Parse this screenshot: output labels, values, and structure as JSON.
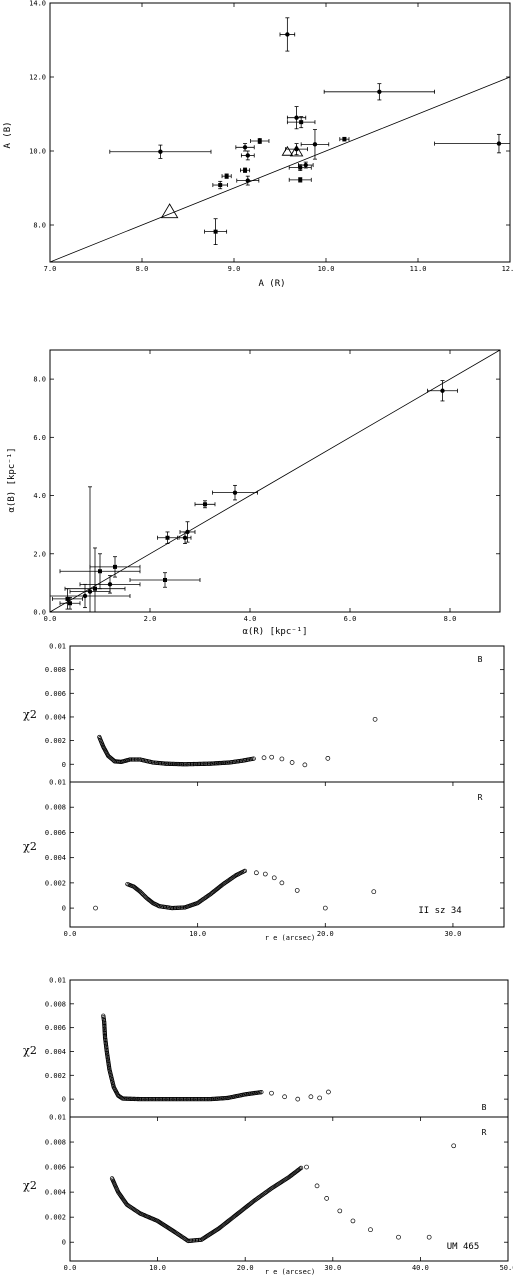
{
  "chart_data": [
    {
      "type": "scatter",
      "panel": "p1",
      "xlabel": "A (R)",
      "ylabel": "A (B)",
      "xlim": [
        7.0,
        12.0
      ],
      "ylim": [
        7.0,
        14.0
      ],
      "xticks": [
        "7.0",
        "8.0",
        "9.0",
        "10.0",
        "11.0",
        "12.0"
      ],
      "yticks": [
        "8.0",
        "10.0",
        "12.0",
        "14.0"
      ],
      "line": [
        [
          7.0,
          7.0
        ],
        [
          12.0,
          12.0
        ]
      ],
      "points": [
        {
          "x": 9.58,
          "y": 13.15,
          "ex": 0.08,
          "ey": 0.45,
          "m": "o"
        },
        {
          "x": 10.58,
          "y": 11.6,
          "ex": 0.6,
          "ey": 0.22,
          "m": "o"
        },
        {
          "x": 11.88,
          "y": 10.2,
          "ex": 0.7,
          "ey": 0.25,
          "m": "o"
        },
        {
          "x": 8.2,
          "y": 9.98,
          "ex": 0.55,
          "ey": 0.18,
          "m": "o"
        },
        {
          "x": 9.68,
          "y": 10.9,
          "ex": 0.1,
          "ey": 0.3,
          "m": "o"
        },
        {
          "x": 9.73,
          "y": 10.78,
          "ex": 0.15,
          "ey": 0.15,
          "m": "s"
        },
        {
          "x": 9.28,
          "y": 10.27,
          "ex": 0.1,
          "ey": 0.07,
          "m": "s"
        },
        {
          "x": 10.2,
          "y": 10.32,
          "ex": 0.05,
          "ey": 0.05,
          "m": "s"
        },
        {
          "x": 9.12,
          "y": 10.1,
          "ex": 0.1,
          "ey": 0.1,
          "m": "o"
        },
        {
          "x": 9.15,
          "y": 9.88,
          "ex": 0.07,
          "ey": 0.12,
          "m": "o"
        },
        {
          "x": 9.68,
          "y": 10.05,
          "ex": 0.12,
          "ey": 0.15,
          "m": "o"
        },
        {
          "x": 9.88,
          "y": 10.18,
          "ex": 0.15,
          "ey": 0.4,
          "m": "o"
        },
        {
          "x": 9.78,
          "y": 9.62,
          "ex": 0.08,
          "ey": 0.08,
          "m": "o"
        },
        {
          "x": 9.72,
          "y": 9.55,
          "ex": 0.12,
          "ey": 0.08,
          "m": "s"
        },
        {
          "x": 9.12,
          "y": 9.48,
          "ex": 0.05,
          "ey": 0.06,
          "m": "s"
        },
        {
          "x": 8.92,
          "y": 9.32,
          "ex": 0.05,
          "ey": 0.06,
          "m": "s"
        },
        {
          "x": 9.15,
          "y": 9.2,
          "ex": 0.12,
          "ey": 0.12,
          "m": "o"
        },
        {
          "x": 8.85,
          "y": 9.08,
          "ex": 0.08,
          "ey": 0.1,
          "m": "s"
        },
        {
          "x": 9.72,
          "y": 9.22,
          "ex": 0.12,
          "ey": 0.06,
          "m": "s"
        },
        {
          "x": 8.8,
          "y": 7.82,
          "ex": 0.12,
          "ey": 0.35,
          "m": "s"
        }
      ],
      "triangles": [
        {
          "x": 8.3,
          "y": 8.35,
          "size": 8
        },
        {
          "x": 9.68,
          "y": 9.98,
          "size": 6
        },
        {
          "x": 9.58,
          "y": 9.98,
          "size": 5
        }
      ]
    },
    {
      "type": "scatter",
      "panel": "p2",
      "xlabel": "α(R) [kpc⁻¹]",
      "ylabel": "α(B) [kpc⁻¹]",
      "xlim": [
        0.0,
        9.0
      ],
      "ylim": [
        0.0,
        9.0
      ],
      "xticks": [
        "0.0",
        "2.0",
        "4.0",
        "6.0",
        "8.0"
      ],
      "yticks": [
        "0.0",
        "2.0",
        "4.0",
        "6.0",
        "8.0"
      ],
      "line": [
        [
          0.0,
          0.0
        ],
        [
          9.0,
          9.0
        ]
      ],
      "points": [
        {
          "x": 7.85,
          "y": 7.6,
          "ex": 0.3,
          "ey": 0.35,
          "m": "o"
        },
        {
          "x": 3.7,
          "y": 4.1,
          "ex": 0.45,
          "ey": 0.25,
          "m": "o"
        },
        {
          "x": 3.1,
          "y": 3.7,
          "ex": 0.2,
          "ey": 0.12,
          "m": "s"
        },
        {
          "x": 2.75,
          "y": 2.75,
          "ex": 0.15,
          "ey": 0.35,
          "m": "o"
        },
        {
          "x": 2.7,
          "y": 2.55,
          "ex": 0.12,
          "ey": 0.2,
          "m": "o"
        },
        {
          "x": 2.35,
          "y": 2.55,
          "ex": 0.2,
          "ey": 0.2,
          "m": "s"
        },
        {
          "x": 2.3,
          "y": 1.1,
          "ex": 0.7,
          "ey": 0.25,
          "m": "s"
        },
        {
          "x": 1.3,
          "y": 1.55,
          "ex": 0.5,
          "ey": 0.35,
          "m": "s"
        },
        {
          "x": 1.0,
          "y": 1.4,
          "ex": 0.8,
          "ey": 0.6,
          "m": "s"
        },
        {
          "x": 0.8,
          "y": 0.7,
          "ex": 0.4,
          "ey": 3.6,
          "m": "o"
        },
        {
          "x": 0.9,
          "y": 0.8,
          "ex": 0.6,
          "ey": 1.4,
          "m": "s"
        },
        {
          "x": 0.7,
          "y": 0.55,
          "ex": 0.9,
          "ey": 0.4,
          "m": "o"
        },
        {
          "x": 0.35,
          "y": 0.45,
          "ex": 0.3,
          "ey": 0.35,
          "m": "s"
        },
        {
          "x": 0.4,
          "y": 0.3,
          "ex": 0.2,
          "ey": 0.2,
          "m": "s"
        },
        {
          "x": 1.2,
          "y": 0.95,
          "ex": 0.6,
          "ey": 0.3,
          "m": "o"
        }
      ]
    },
    {
      "type": "scatter",
      "panel": "p3",
      "band": "B",
      "ylabel": "χ2",
      "xlim": [
        0,
        34
      ],
      "ylim": [
        -0.0015,
        0.01
      ],
      "yticks": [
        "0",
        "0.002",
        "0.004",
        "0.006",
        "0.008",
        "0.01"
      ],
      "curve": [
        [
          2.3,
          0.0023
        ],
        [
          2.6,
          0.0015
        ],
        [
          3.0,
          0.0007
        ],
        [
          3.5,
          0.00025
        ],
        [
          4.0,
          0.0002
        ],
        [
          4.7,
          0.0004
        ],
        [
          5.5,
          0.0004
        ],
        [
          6.5,
          0.00015
        ],
        [
          7.5,
          5e-05
        ],
        [
          9.0,
          0.0
        ],
        [
          11.0,
          5e-05
        ],
        [
          12.5,
          0.00015
        ],
        [
          13.5,
          0.0003
        ],
        [
          14.5,
          0.0005
        ]
      ],
      "points": [
        [
          15.2,
          0.00055
        ],
        [
          15.8,
          0.0006
        ],
        [
          16.6,
          0.00045
        ],
        [
          17.4,
          0.00015
        ],
        [
          18.4,
          -5e-05
        ],
        [
          20.2,
          0.0005
        ],
        [
          23.9,
          0.0038
        ]
      ]
    },
    {
      "type": "scatter",
      "panel": "p4",
      "band": "R",
      "label": "II sz 34",
      "ylabel": "χ2",
      "xlabel": "r e (arcsec)",
      "xlim": [
        0,
        34
      ],
      "ylim": [
        -0.0015,
        0.01
      ],
      "xticks": [
        "0.0",
        "10.0",
        "20.0",
        "30.0"
      ],
      "yticks": [
        "0",
        "0.002",
        "0.004",
        "0.006",
        "0.008",
        "0.01"
      ],
      "curve": [
        [
          4.5,
          0.0019
        ],
        [
          5.0,
          0.0017
        ],
        [
          5.5,
          0.0013
        ],
        [
          6.0,
          0.0008
        ],
        [
          6.5,
          0.0004
        ],
        [
          7.0,
          0.00015
        ],
        [
          8.0,
          0.0
        ],
        [
          9.0,
          5e-05
        ],
        [
          10.0,
          0.0004
        ],
        [
          11.0,
          0.0011
        ],
        [
          12.0,
          0.0019
        ],
        [
          13.0,
          0.0026
        ],
        [
          13.8,
          0.003
        ]
      ],
      "points": [
        [
          14.6,
          0.0028
        ],
        [
          15.3,
          0.0027
        ],
        [
          16.0,
          0.0024
        ],
        [
          16.6,
          0.002
        ],
        [
          17.8,
          0.0014
        ],
        [
          20.0,
          0.0
        ],
        [
          23.8,
          0.0013
        ],
        [
          2.0,
          0.0
        ]
      ]
    },
    {
      "type": "scatter",
      "panel": "p5",
      "band": "B",
      "ylabel": "χ2",
      "xlim": [
        0,
        50
      ],
      "ylim": [
        -0.0015,
        0.01
      ],
      "yticks": [
        "0",
        "0.002",
        "0.004",
        "0.006",
        "0.008",
        "0.01"
      ],
      "curve": [
        [
          3.8,
          0.007
        ],
        [
          3.9,
          0.0065
        ],
        [
          4.0,
          0.0052
        ],
        [
          4.2,
          0.004
        ],
        [
          4.5,
          0.0025
        ],
        [
          5.0,
          0.001
        ],
        [
          5.5,
          0.0003
        ],
        [
          6.0,
          5e-05
        ],
        [
          8.0,
          0.0
        ],
        [
          12.0,
          0.0
        ],
        [
          16.0,
          0.0
        ],
        [
          18.0,
          0.0001
        ],
        [
          20.0,
          0.0004
        ],
        [
          22.0,
          0.0006
        ]
      ],
      "points": [
        [
          23.0,
          0.0005
        ],
        [
          24.5,
          0.0002
        ],
        [
          26.0,
          0.0
        ],
        [
          27.5,
          0.0002
        ],
        [
          28.5,
          0.0001
        ],
        [
          29.5,
          0.0006
        ]
      ]
    },
    {
      "type": "scatter",
      "panel": "p6",
      "band": "R",
      "label": "UM 465",
      "ylabel": "χ2",
      "xlabel": "r e (arcsec)",
      "xlim": [
        0,
        50
      ],
      "ylim": [
        -0.0015,
        0.01
      ],
      "xticks": [
        "0.0",
        "10.0",
        "20.0",
        "30.0",
        "40.0",
        "50.0"
      ],
      "yticks": [
        "0",
        "0.002",
        "0.004",
        "0.006",
        "0.008",
        "0.01"
      ],
      "curve": [
        [
          4.8,
          0.0051
        ],
        [
          5.5,
          0.004
        ],
        [
          6.5,
          0.003
        ],
        [
          8.0,
          0.0023
        ],
        [
          10.0,
          0.0017
        ],
        [
          12.0,
          0.0008
        ],
        [
          13.5,
          0.0001
        ],
        [
          15.0,
          0.0002
        ],
        [
          17.0,
          0.0011
        ],
        [
          19.0,
          0.0022
        ],
        [
          21.0,
          0.0033
        ],
        [
          23.0,
          0.0043
        ],
        [
          25.0,
          0.0052
        ],
        [
          26.5,
          0.006
        ]
      ],
      "points": [
        [
          27.0,
          0.006
        ],
        [
          28.2,
          0.0045
        ],
        [
          29.3,
          0.0035
        ],
        [
          30.8,
          0.0025
        ],
        [
          32.3,
          0.0017
        ],
        [
          34.3,
          0.001
        ],
        [
          37.5,
          0.0004
        ],
        [
          41.0,
          0.0004
        ],
        [
          43.8,
          0.0077
        ]
      ]
    }
  ]
}
